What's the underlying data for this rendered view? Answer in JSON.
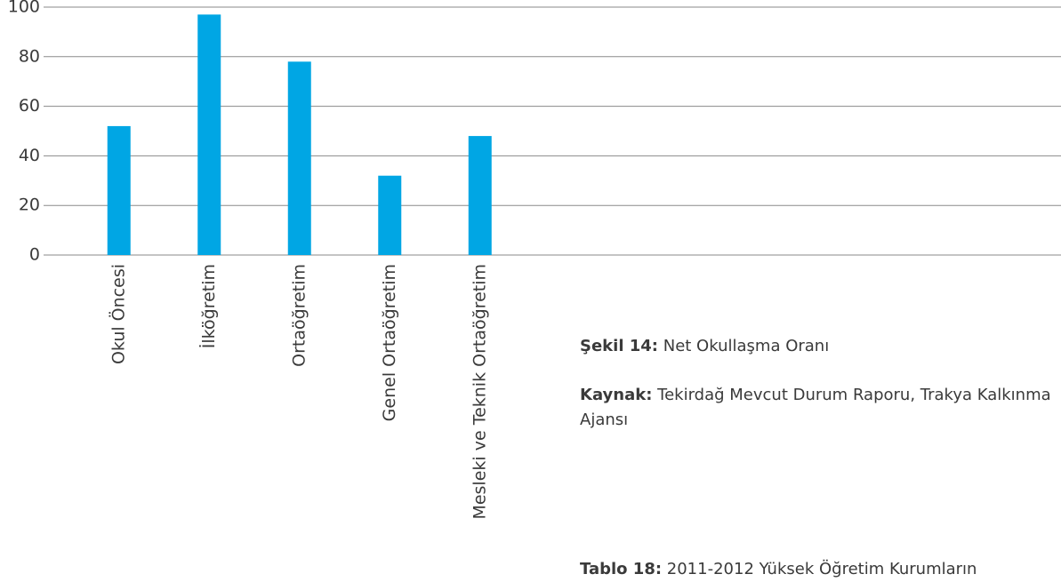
{
  "chart_data": {
    "type": "bar",
    "categories": [
      "Okul Öncesi",
      "İlköğretim",
      "Ortaöğretim",
      "Genel Ortaöğretim",
      "Mesleki ve Teknik Ortaöğretim"
    ],
    "values": [
      52,
      97,
      78,
      32,
      48
    ],
    "color": "#00a6e4",
    "ylim": [
      0,
      100
    ],
    "yticks": [
      0,
      20,
      40,
      60,
      80,
      100
    ],
    "grid": true
  },
  "captions": [
    {
      "label": "Şekil 14:",
      "text": "Net Okullaşma Oranı"
    },
    {
      "label": "Kaynak:",
      "text": "Tekirdağ Mevcut Durum Raporu, Trakya Kalkınma Ajansı"
    },
    {
      "label": "Tablo 18:",
      "text": "2011-2012 Yüksek Öğretim Kurumların"
    }
  ]
}
